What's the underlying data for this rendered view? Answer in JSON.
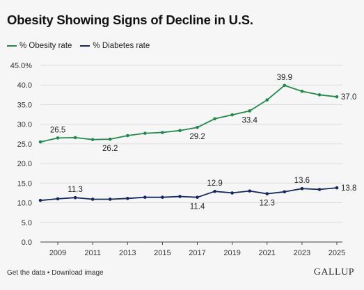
{
  "title": "Obesity Showing Signs of Decline in U.S.",
  "footer": {
    "get_data": "Get the data",
    "separator": " • ",
    "download": "Download image"
  },
  "logo": "GALLUP",
  "colors": {
    "obesity": "#1f8a4c",
    "diabetes": "#14285e",
    "grid": "#d7d7d7",
    "text": "#222222"
  },
  "chart_data": {
    "type": "line",
    "title": "Obesity Showing Signs of Decline in U.S.",
    "xlabel": "",
    "ylabel": "",
    "ylim": [
      0,
      45
    ],
    "xlim": [
      2008,
      2025
    ],
    "yticks": [
      0,
      5,
      10,
      15,
      20,
      25,
      30,
      35,
      40,
      45
    ],
    "ytick_labels": [
      "0.0",
      "5.0",
      "10.0",
      "15.0",
      "20.0",
      "25.0",
      "30.0",
      "35.0",
      "40.0",
      "45.0%"
    ],
    "xticks": [
      2009,
      2011,
      2013,
      2015,
      2017,
      2019,
      2021,
      2023,
      2025
    ],
    "grid": true,
    "legend_position": "top-left",
    "x": [
      2008,
      2009,
      2010,
      2011,
      2012,
      2013,
      2014,
      2015,
      2016,
      2017,
      2018,
      2019,
      2020,
      2021,
      2022,
      2023,
      2024,
      2025
    ],
    "series": [
      {
        "name": "% Obesity rate",
        "values": [
          25.5,
          26.5,
          26.6,
          26.1,
          26.2,
          27.1,
          27.7,
          27.9,
          28.4,
          29.2,
          31.4,
          32.4,
          33.4,
          36.2,
          39.9,
          38.4,
          37.5,
          37.0
        ],
        "labels": [
          {
            "x": 2009,
            "text": "26.5",
            "pos": "above"
          },
          {
            "x": 2012,
            "text": "26.2",
            "pos": "below"
          },
          {
            "x": 2017,
            "text": "29.2",
            "pos": "below"
          },
          {
            "x": 2020,
            "text": "33.4",
            "pos": "below"
          },
          {
            "x": 2022,
            "text": "39.9",
            "pos": "above"
          },
          {
            "x": 2025,
            "text": "37.0",
            "pos": "right"
          }
        ]
      },
      {
        "name": "% Diabetes rate",
        "values": [
          10.6,
          11.0,
          11.3,
          10.9,
          10.9,
          11.1,
          11.4,
          11.4,
          11.6,
          11.4,
          12.9,
          12.5,
          13.0,
          12.3,
          12.8,
          13.6,
          13.4,
          13.8
        ],
        "labels": [
          {
            "x": 2010,
            "text": "11.3",
            "pos": "above"
          },
          {
            "x": 2017,
            "text": "11.4",
            "pos": "below"
          },
          {
            "x": 2018,
            "text": "12.9",
            "pos": "above"
          },
          {
            "x": 2021,
            "text": "12.3",
            "pos": "below"
          },
          {
            "x": 2023,
            "text": "13.6",
            "pos": "above"
          },
          {
            "x": 2025,
            "text": "13.8",
            "pos": "right"
          }
        ]
      }
    ]
  }
}
